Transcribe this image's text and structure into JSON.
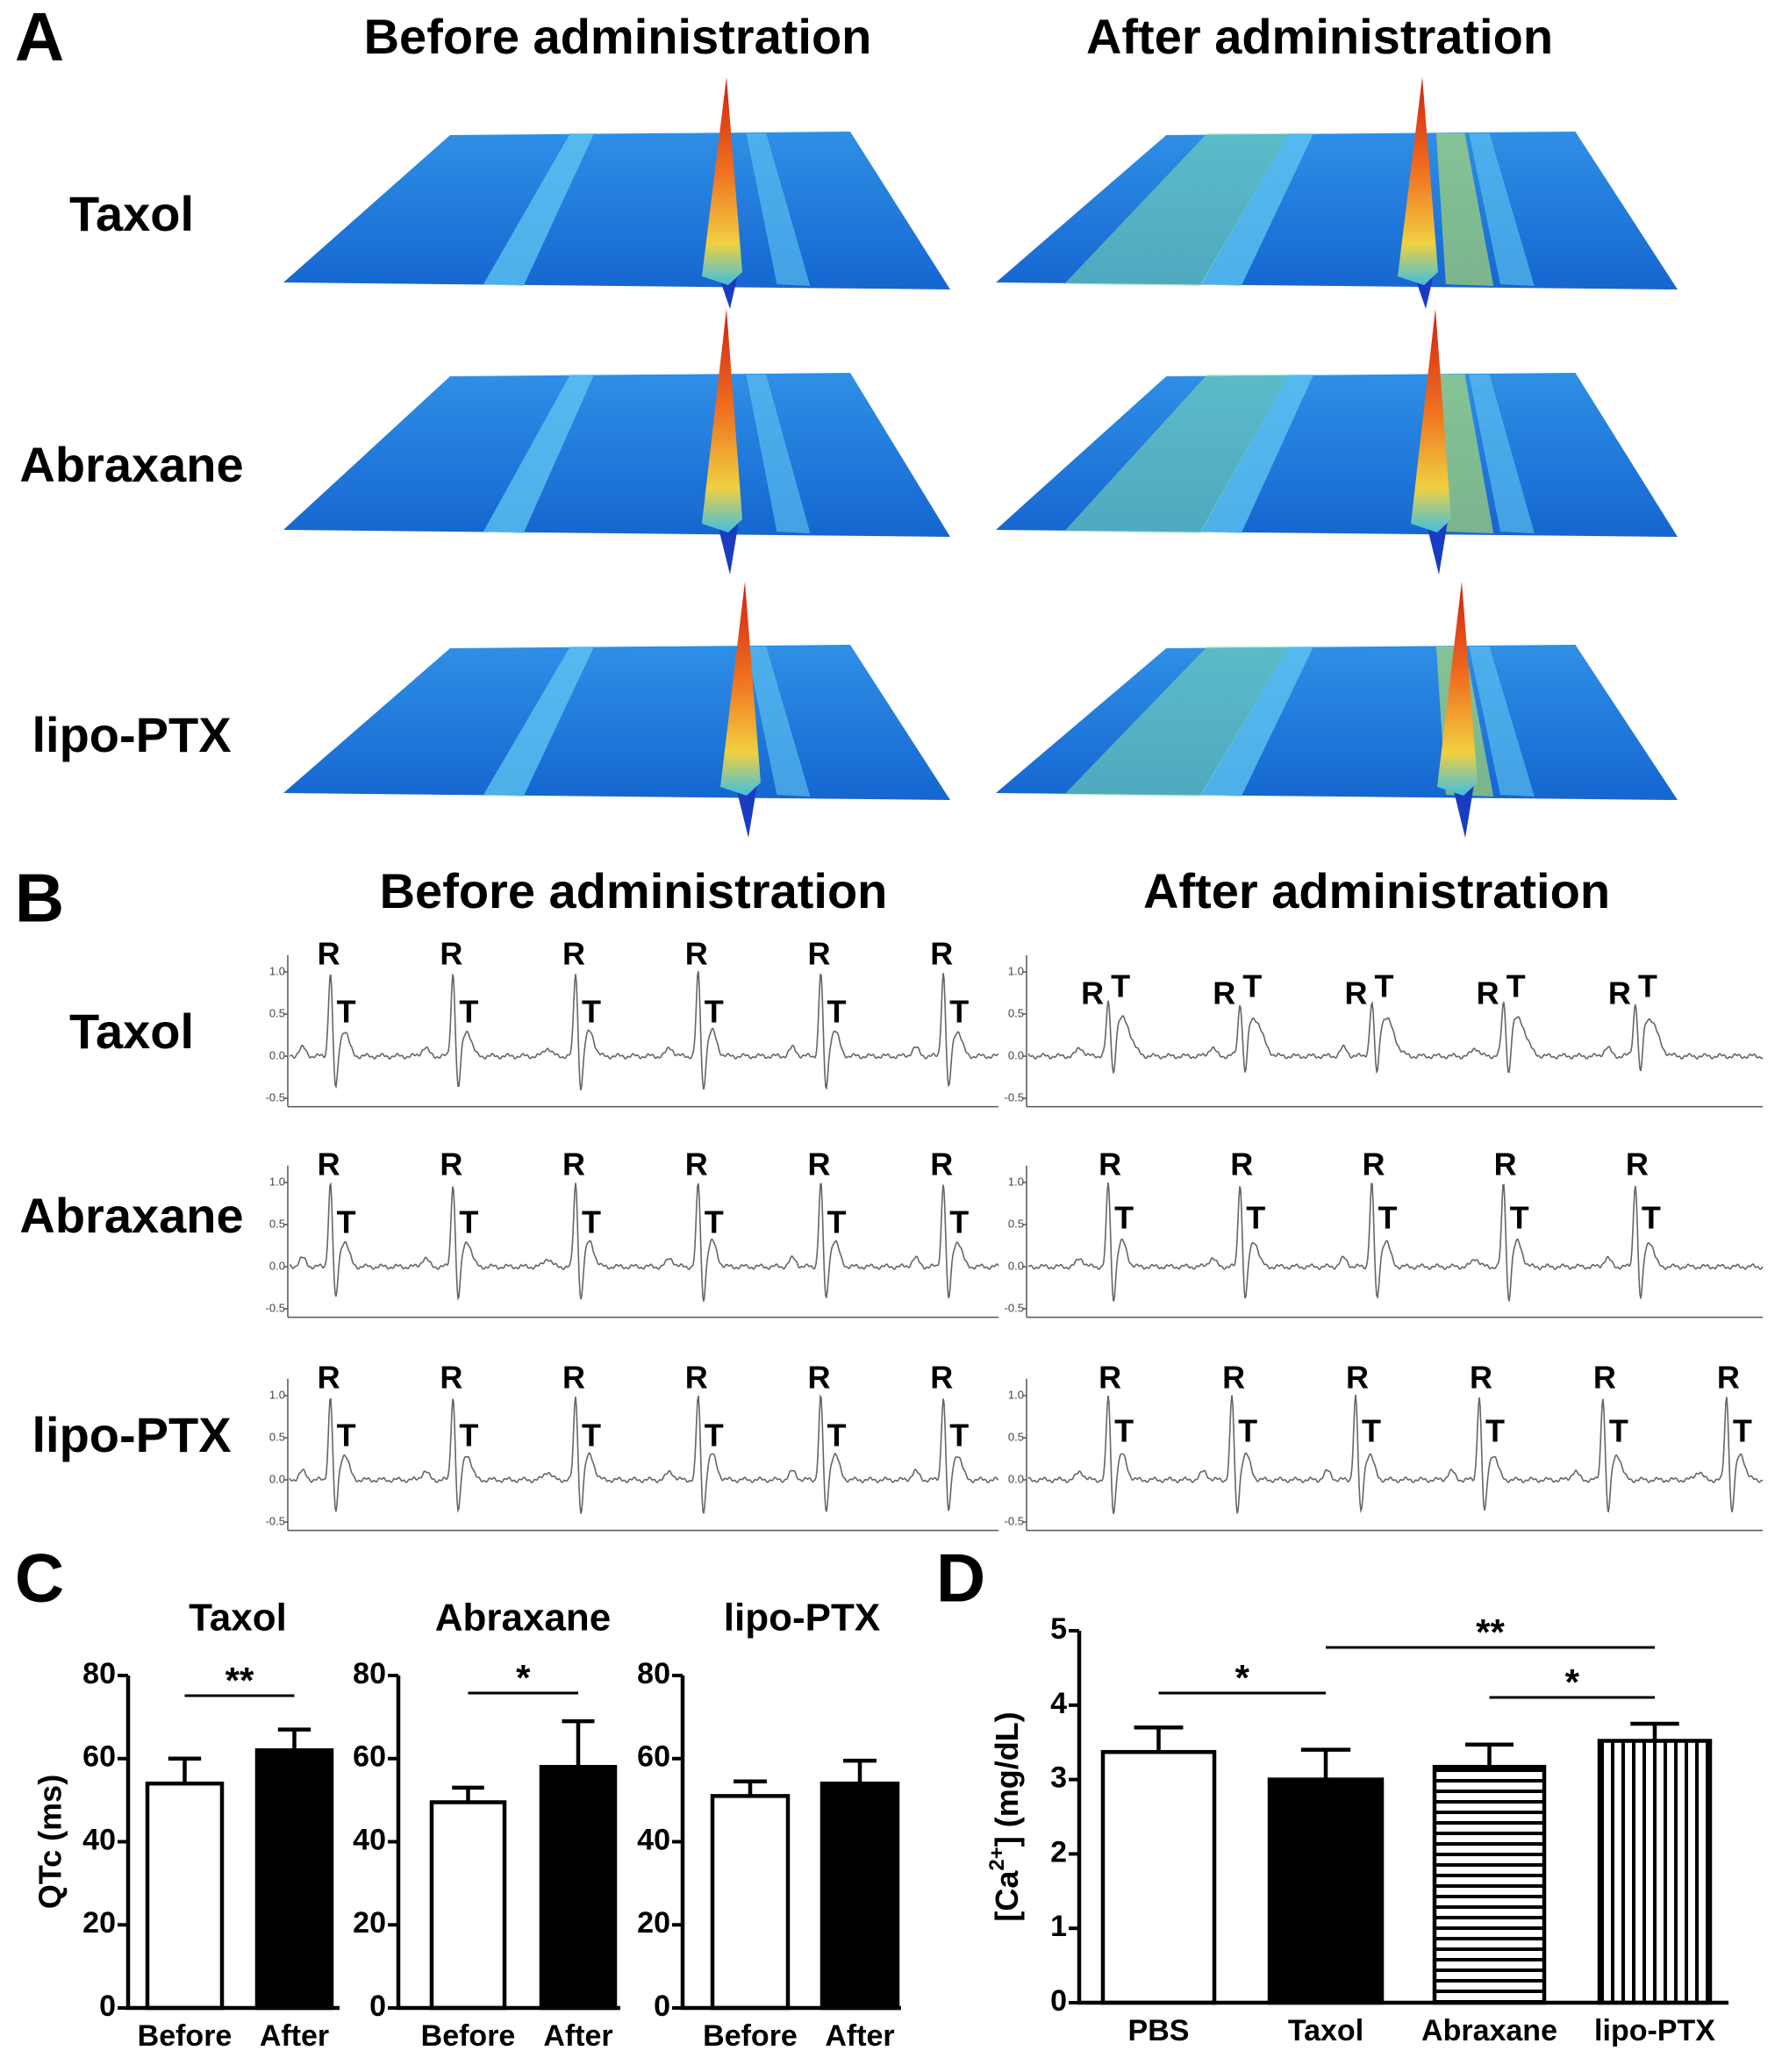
{
  "panel_labels": [
    "A",
    "B",
    "C",
    "D"
  ],
  "panel_a": {
    "columns": [
      "Before administration",
      "After administration"
    ],
    "rows": [
      "Taxol",
      "Abraxane",
      "lipo-PTX"
    ]
  },
  "panel_b": {
    "columns": [
      "Before administration",
      "After administration"
    ],
    "rows": [
      "Taxol",
      "Abraxane",
      "lipo-PTX"
    ],
    "ylim": [
      -0.6,
      1.2
    ],
    "yticks": [
      {
        "value": 1,
        "label": "1.0"
      },
      {
        "value": 0.5,
        "label": "0.5"
      },
      {
        "value": 0,
        "label": "0.0"
      },
      {
        "value": -0.5,
        "label": "-0.5"
      }
    ],
    "traces": [
      {
        "peaks": [
          [
            "R",
            "T"
          ],
          [
            "R",
            "T"
          ],
          [
            "R",
            "T"
          ],
          [
            "R",
            "T"
          ],
          [
            "R",
            "T"
          ],
          [
            "R",
            "T"
          ]
        ]
      },
      {
        "peaks": [
          [
            "R",
            "T"
          ],
          [
            "R",
            "T"
          ],
          [
            "R",
            "T"
          ],
          [
            "R",
            "T"
          ],
          [
            "R",
            "T"
          ]
        ]
      },
      {
        "peaks": [
          [
            "R",
            "T"
          ],
          [
            "R",
            "T"
          ],
          [
            "R",
            "T"
          ],
          [
            "R",
            "T"
          ],
          [
            "R",
            "T"
          ],
          [
            "R",
            "T"
          ]
        ]
      },
      {
        "peaks": [
          [
            "R",
            "T"
          ],
          [
            "R",
            "T"
          ],
          [
            "R",
            "T"
          ],
          [
            "R",
            "T"
          ],
          [
            "R",
            "T"
          ]
        ]
      },
      {
        "peaks": [
          [
            "R",
            "T"
          ],
          [
            "R",
            "T"
          ],
          [
            "R",
            "T"
          ],
          [
            "R",
            "T"
          ],
          [
            "R",
            "T"
          ],
          [
            "R",
            "T"
          ]
        ]
      },
      {
        "peaks": [
          [
            "R",
            "T"
          ],
          [
            "R",
            "T"
          ],
          [
            "R",
            "T"
          ],
          [
            "R",
            "T"
          ],
          [
            "R",
            "T"
          ],
          [
            "R",
            "T"
          ]
        ]
      }
    ]
  },
  "chart_data": [
    {
      "type": "bar",
      "title": "Taxol",
      "ylabel": "QTc (ms)",
      "categories": [
        "Before",
        "After"
      ],
      "values": [
        54,
        62
      ],
      "errors": [
        6,
        5
      ],
      "colors": [
        "#ffffff",
        "#000000"
      ],
      "ylim": [
        0,
        80
      ],
      "yticks": [
        0,
        20,
        40,
        60,
        80
      ],
      "annotations": [
        {
          "text": "**",
          "between": [
            0,
            1
          ]
        }
      ]
    },
    {
      "type": "bar",
      "title": "Abraxane",
      "categories": [
        "Before",
        "After"
      ],
      "values": [
        49.5,
        58
      ],
      "errors": [
        3.5,
        11
      ],
      "colors": [
        "#ffffff",
        "#000000"
      ],
      "ylim": [
        0,
        80
      ],
      "yticks": [
        0,
        20,
        40,
        60,
        80
      ],
      "annotations": [
        {
          "text": "*",
          "between": [
            0,
            1
          ]
        }
      ]
    },
    {
      "type": "bar",
      "title": "lipo-PTX",
      "categories": [
        "Before",
        "After"
      ],
      "values": [
        51,
        54
      ],
      "errors": [
        3.5,
        5.5
      ],
      "colors": [
        "#ffffff",
        "#000000"
      ],
      "ylim": [
        0,
        80
      ],
      "yticks": [
        0,
        20,
        40,
        60,
        80
      ],
      "annotations": []
    },
    {
      "type": "bar",
      "ylabel": {
        "text": "[Ca",
        "superscript": "2+",
        "rest": "] (mg/dL)"
      },
      "categories": [
        "PBS",
        "Taxol",
        "Abraxane",
        "lipo-PTX"
      ],
      "values": [
        3.37,
        3.0,
        3.17,
        3.52
      ],
      "errors": [
        0.33,
        0.4,
        0.3,
        0.23
      ],
      "colors": [
        "#ffffff",
        "#000000",
        "#ffffff",
        "#ffffff"
      ],
      "hatches": [
        null,
        null,
        "horizontal",
        "vertical"
      ],
      "ylim": [
        0,
        5
      ],
      "yticks": [
        0,
        1,
        2,
        3,
        4,
        5
      ],
      "annotations": [
        {
          "text": "*",
          "between": [
            0,
            1
          ]
        },
        {
          "text": "**",
          "between": [
            1,
            3
          ]
        },
        {
          "text": "*",
          "between": [
            2,
            3
          ]
        }
      ]
    }
  ]
}
